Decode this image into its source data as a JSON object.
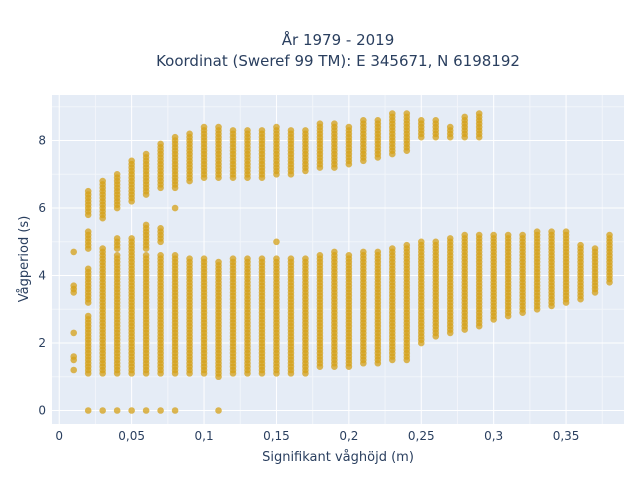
{
  "chart_data": {
    "type": "scatter",
    "title_line1": "År 1979 - 2019",
    "title_line2": "Koordinat (Sweref 99 TM): E 345671, N 6198192",
    "xlabel": "Signifikant våghöjd (m)",
    "ylabel": "Vågperiod (s)",
    "xlim": [
      -0.005,
      0.39
    ],
    "ylim": [
      -0.4,
      9.35
    ],
    "x_ticks": [
      0,
      0.05,
      0.1,
      0.15,
      0.2,
      0.25,
      0.3,
      0.35
    ],
    "x_tick_labels": [
      "0",
      "0,05",
      "0,1",
      "0,15",
      "0,2",
      "0,25",
      "0,3",
      "0,35"
    ],
    "y_ticks": [
      0,
      2,
      4,
      6,
      8
    ],
    "y_tick_labels": [
      "0",
      "2",
      "4",
      "6",
      "8"
    ],
    "grid": true,
    "marker_color": "#D4A017",
    "plot_background": "#E5ECF6",
    "x_step": 0.01,
    "y_step": 0.1,
    "zero_period_x": [
      0.02,
      0.03,
      0.04,
      0.05,
      0.06,
      0.07,
      0.08,
      0.11
    ],
    "columns": [
      {
        "x": 0.01,
        "ranges": [
          [
            1.2,
            1.2
          ],
          [
            1.5,
            1.6
          ],
          [
            2.3,
            2.3
          ],
          [
            3.5,
            3.7
          ],
          [
            4.7,
            4.7
          ]
        ]
      },
      {
        "x": 0.02,
        "ranges": [
          [
            1.1,
            2.8
          ],
          [
            3.2,
            4.2
          ],
          [
            4.8,
            5.3
          ],
          [
            5.8,
            6.5
          ]
        ]
      },
      {
        "x": 0.03,
        "ranges": [
          [
            1.1,
            4.3
          ],
          [
            4.4,
            4.8
          ],
          [
            5.7,
            6.8
          ]
        ]
      },
      {
        "x": 0.04,
        "ranges": [
          [
            1.1,
            4.6
          ],
          [
            4.8,
            5.1
          ],
          [
            6.0,
            7.0
          ]
        ]
      },
      {
        "x": 0.05,
        "ranges": [
          [
            1.1,
            4.6
          ],
          [
            4.7,
            5.1
          ],
          [
            6.2,
            7.4
          ]
        ]
      },
      {
        "x": 0.06,
        "ranges": [
          [
            1.1,
            4.6
          ],
          [
            4.8,
            5.5
          ],
          [
            6.4,
            7.6
          ]
        ]
      },
      {
        "x": 0.07,
        "ranges": [
          [
            1.1,
            4.6
          ],
          [
            5.0,
            5.4
          ],
          [
            6.6,
            7.9
          ]
        ]
      },
      {
        "x": 0.08,
        "ranges": [
          [
            1.1,
            4.6
          ],
          [
            6.0,
            6.0
          ],
          [
            6.6,
            8.1
          ]
        ]
      },
      {
        "x": 0.09,
        "ranges": [
          [
            1.1,
            4.5
          ],
          [
            6.8,
            8.2
          ]
        ]
      },
      {
        "x": 0.1,
        "ranges": [
          [
            1.1,
            4.5
          ],
          [
            6.9,
            8.4
          ]
        ]
      },
      {
        "x": 0.11,
        "ranges": [
          [
            1.0,
            4.4
          ],
          [
            6.9,
            8.4
          ]
        ]
      },
      {
        "x": 0.12,
        "ranges": [
          [
            1.1,
            4.5
          ],
          [
            6.9,
            8.3
          ]
        ]
      },
      {
        "x": 0.13,
        "ranges": [
          [
            1.1,
            4.5
          ],
          [
            6.9,
            8.3
          ]
        ]
      },
      {
        "x": 0.14,
        "ranges": [
          [
            1.1,
            4.5
          ],
          [
            6.9,
            8.3
          ]
        ]
      },
      {
        "x": 0.15,
        "ranges": [
          [
            1.1,
            4.5
          ],
          [
            5.0,
            5.0
          ],
          [
            7.0,
            8.4
          ]
        ]
      },
      {
        "x": 0.16,
        "ranges": [
          [
            1.1,
            4.5
          ],
          [
            7.0,
            8.3
          ]
        ]
      },
      {
        "x": 0.17,
        "ranges": [
          [
            1.1,
            4.5
          ],
          [
            7.1,
            8.3
          ]
        ]
      },
      {
        "x": 0.18,
        "ranges": [
          [
            1.3,
            4.6
          ],
          [
            7.2,
            8.5
          ]
        ]
      },
      {
        "x": 0.19,
        "ranges": [
          [
            1.3,
            4.7
          ],
          [
            7.2,
            8.5
          ]
        ]
      },
      {
        "x": 0.2,
        "ranges": [
          [
            1.3,
            4.6
          ],
          [
            7.3,
            8.4
          ]
        ]
      },
      {
        "x": 0.21,
        "ranges": [
          [
            1.4,
            4.7
          ],
          [
            7.4,
            8.6
          ]
        ]
      },
      {
        "x": 0.22,
        "ranges": [
          [
            1.4,
            4.7
          ],
          [
            7.5,
            8.6
          ]
        ]
      },
      {
        "x": 0.23,
        "ranges": [
          [
            1.5,
            4.8
          ],
          [
            7.6,
            8.8
          ]
        ]
      },
      {
        "x": 0.24,
        "ranges": [
          [
            1.5,
            4.9
          ],
          [
            7.7,
            8.8
          ]
        ]
      },
      {
        "x": 0.25,
        "ranges": [
          [
            2.0,
            5.0
          ],
          [
            8.1,
            8.6
          ]
        ]
      },
      {
        "x": 0.26,
        "ranges": [
          [
            2.2,
            5.0
          ],
          [
            8.1,
            8.6
          ]
        ]
      },
      {
        "x": 0.27,
        "ranges": [
          [
            2.3,
            5.1
          ],
          [
            8.1,
            8.4
          ]
        ]
      },
      {
        "x": 0.28,
        "ranges": [
          [
            2.4,
            5.2
          ],
          [
            8.1,
            8.7
          ]
        ]
      },
      {
        "x": 0.29,
        "ranges": [
          [
            2.5,
            5.2
          ],
          [
            8.1,
            8.8
          ]
        ]
      },
      {
        "x": 0.3,
        "ranges": [
          [
            2.7,
            5.2
          ]
        ]
      },
      {
        "x": 0.31,
        "ranges": [
          [
            2.8,
            5.2
          ]
        ]
      },
      {
        "x": 0.32,
        "ranges": [
          [
            2.9,
            5.2
          ]
        ]
      },
      {
        "x": 0.33,
        "ranges": [
          [
            3.0,
            5.3
          ]
        ]
      },
      {
        "x": 0.34,
        "ranges": [
          [
            3.1,
            5.3
          ]
        ]
      },
      {
        "x": 0.35,
        "ranges": [
          [
            3.2,
            5.3
          ]
        ]
      },
      {
        "x": 0.36,
        "ranges": [
          [
            3.3,
            4.9
          ]
        ]
      },
      {
        "x": 0.37,
        "ranges": [
          [
            3.5,
            4.8
          ]
        ]
      },
      {
        "x": 0.38,
        "ranges": [
          [
            3.8,
            5.2
          ]
        ]
      }
    ]
  }
}
